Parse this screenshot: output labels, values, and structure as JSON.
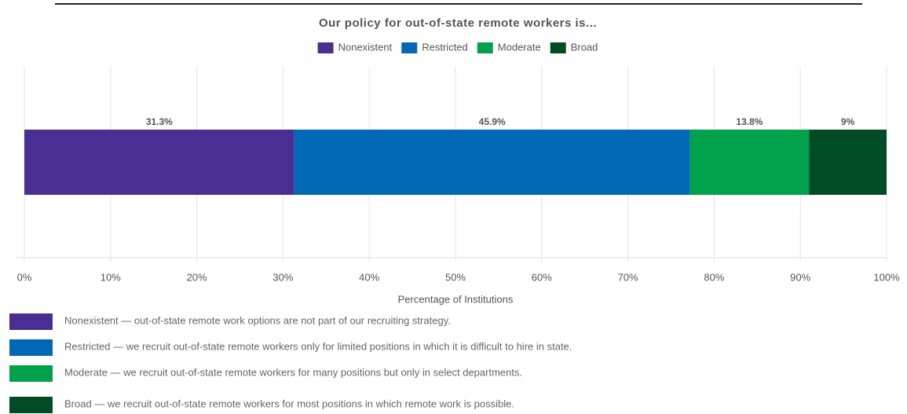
{
  "chart_data": {
    "type": "bar",
    "orientation": "horizontal",
    "stacked": true,
    "title": "Our policy for out-of-state remote workers is...",
    "categories": [
      null
    ],
    "series": [
      {
        "name": "Nonexistent",
        "color": "#4b2e91",
        "values": [
          31.3
        ],
        "value_labels": [
          "31.3%"
        ]
      },
      {
        "name": "Restricted",
        "color": "#0068b6",
        "values": [
          45.9
        ],
        "value_labels": [
          "45.9%"
        ]
      },
      {
        "name": "Moderate",
        "color": "#00a14b",
        "values": [
          13.8
        ],
        "value_labels": [
          "13.8%"
        ]
      },
      {
        "name": "Broad",
        "color": "#004c24",
        "values": [
          9
        ],
        "value_labels": [
          "9%"
        ]
      }
    ],
    "xlim": [
      0,
      100
    ],
    "xticks": [
      {
        "value": 0,
        "label": "0%"
      },
      {
        "value": 10,
        "label": "10%"
      },
      {
        "value": 20,
        "label": "20%"
      },
      {
        "value": 30,
        "label": "30%"
      },
      {
        "value": 40,
        "label": "40%"
      },
      {
        "value": 50,
        "label": "50%"
      },
      {
        "value": 60,
        "label": "60%"
      },
      {
        "value": 70,
        "label": "70%"
      },
      {
        "value": 80,
        "label": "80%"
      },
      {
        "value": 90,
        "label": "90%"
      },
      {
        "value": 100,
        "label": "100%"
      }
    ],
    "xlabel": "Percentage of Institutions",
    "grid": true,
    "legend": "top",
    "descriptions": [
      "Nonexistent — out-of-state remote work options are not part of our recruiting strategy.",
      "Restricted — we recruit out-of-state remote workers only for limited positions in which it is difficult to hire in state.",
      "Moderate — we recruit out-of-state remote workers for many positions but only in select departments.",
      "Broad — we recruit out-of-state remote workers for most positions in which remote work is possible."
    ]
  }
}
